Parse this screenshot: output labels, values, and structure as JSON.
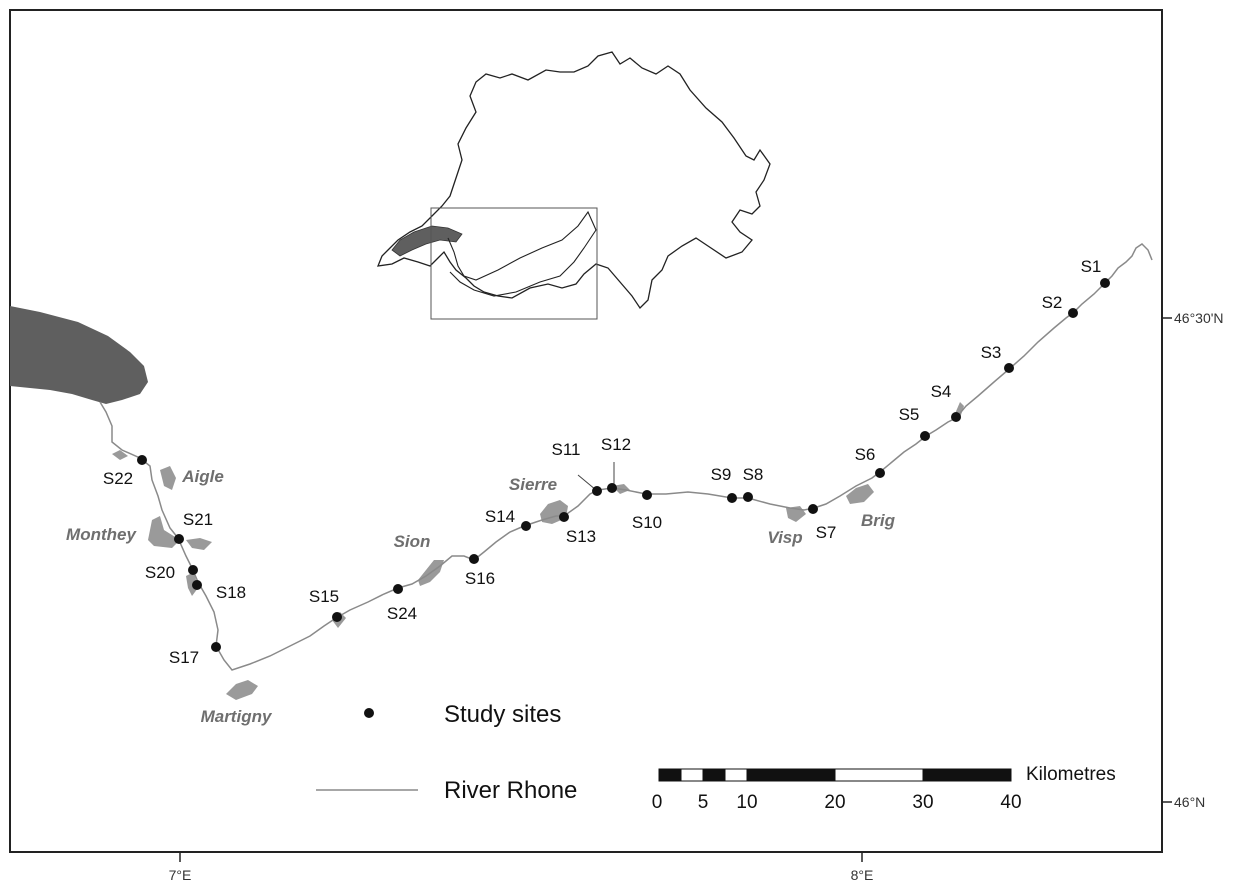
{
  "axes": {
    "lon_labels": [
      "7°E",
      "8°E"
    ],
    "lat_labels": [
      "46°30'N",
      "46°N"
    ]
  },
  "sites": [
    {
      "id": "S1"
    },
    {
      "id": "S2"
    },
    {
      "id": "S3"
    },
    {
      "id": "S4"
    },
    {
      "id": "S5"
    },
    {
      "id": "S6"
    },
    {
      "id": "S7"
    },
    {
      "id": "S8"
    },
    {
      "id": "S9"
    },
    {
      "id": "S10"
    },
    {
      "id": "S11"
    },
    {
      "id": "S12"
    },
    {
      "id": "S13"
    },
    {
      "id": "S14"
    },
    {
      "id": "S15"
    },
    {
      "id": "S16"
    },
    {
      "id": "S17"
    },
    {
      "id": "S18"
    },
    {
      "id": "S20"
    },
    {
      "id": "S21"
    },
    {
      "id": "S22"
    },
    {
      "id": "S24"
    }
  ],
  "towns": [
    "Aigle",
    "Monthey",
    "Martigny",
    "Sion",
    "Sierre",
    "Visp",
    "Brig"
  ],
  "legend": {
    "sites_label": "Study sites",
    "river_label": "River Rhone"
  },
  "scale_bar": {
    "unit_label": "Kilometres",
    "ticks": [
      "0",
      "5",
      "10",
      "20",
      "30",
      "40"
    ]
  },
  "colors": {
    "river": "#8a8a8a",
    "lake": "#5f5f5f",
    "town": "#9a9a9a",
    "site": "#111111",
    "frame": "#222222"
  }
}
